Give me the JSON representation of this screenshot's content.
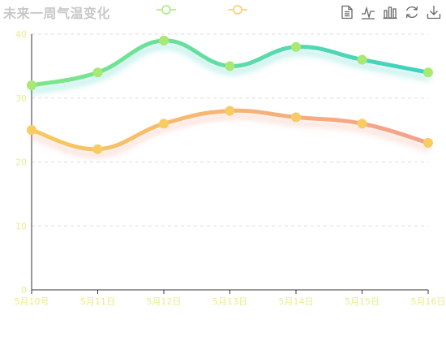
{
  "title": "未来一周气温变化",
  "legend": [
    {
      "series": 0,
      "marker": "circle-line"
    },
    {
      "series": 1,
      "marker": "circle-line"
    }
  ],
  "toolbox": [
    {
      "name": "data-view-icon"
    },
    {
      "name": "line-chart-icon"
    },
    {
      "name": "bar-chart-icon"
    },
    {
      "name": "restore-icon"
    },
    {
      "name": "save-image-icon"
    }
  ],
  "colors": {
    "high_start": "#7ee787",
    "high_end": "#3fd1c3",
    "high_point": "#a9e873",
    "low_start": "#f7c95e",
    "low_end": "#f4a08c",
    "low_point": "#f7cd63",
    "axis_label": "#e3ef8c",
    "axis_line": "#333333",
    "grid": "#dddddd",
    "toolbox": "#666666",
    "legend_high": "#a9e873",
    "legend_low": "#f7cd63"
  },
  "chart_data": {
    "type": "line",
    "title": "未来一周气温变化",
    "categories": [
      "5月10号",
      "5月11日",
      "5月12日",
      "5月13日",
      "5月14日",
      "5月15日",
      "5月16日"
    ],
    "series": [
      {
        "values": [
          32,
          34,
          39,
          35,
          38,
          36,
          34
        ],
        "smooth": true
      },
      {
        "values": [
          25,
          22,
          26,
          28,
          27,
          26,
          23
        ],
        "smooth": true
      }
    ],
    "ylim": [
      0,
      40
    ],
    "yticks": [
      0,
      10,
      20,
      30,
      40
    ],
    "grid": "horizontal-dashed",
    "legend_position": "top"
  }
}
